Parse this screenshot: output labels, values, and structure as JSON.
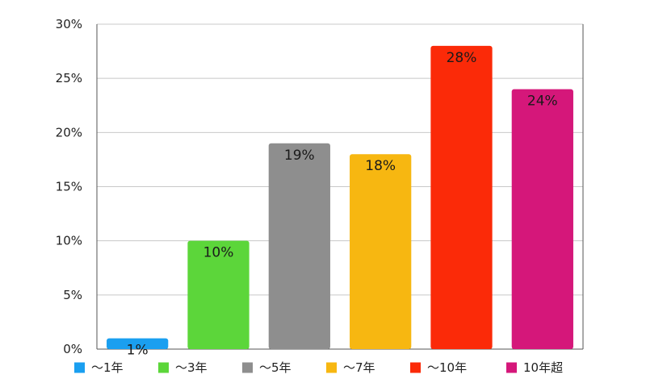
{
  "chart_data": {
    "type": "bar",
    "categories": [
      "～1年",
      "～3年",
      "～5年",
      "～7年",
      "～10年",
      "10年超"
    ],
    "values": [
      1,
      10,
      19,
      18,
      28,
      24
    ],
    "data_labels": [
      "1%",
      "10%",
      "19%",
      "18%",
      "28%",
      "24%"
    ],
    "colors": [
      "#1a9ff0",
      "#5cd63a",
      "#8e8e8e",
      "#f7b711",
      "#fb2a08",
      "#d5177a"
    ],
    "ylim": [
      0,
      30
    ],
    "yticks": [
      0,
      5,
      10,
      15,
      20,
      25,
      30
    ],
    "ytick_labels": [
      "0%",
      "5%",
      "10%",
      "15%",
      "20%",
      "25%",
      "30%"
    ],
    "grid": true,
    "legend": {
      "placement": "bottom",
      "entries": [
        "～1年",
        "～3年",
        "～5年",
        "～7年",
        "～10年",
        "10年超"
      ]
    }
  }
}
